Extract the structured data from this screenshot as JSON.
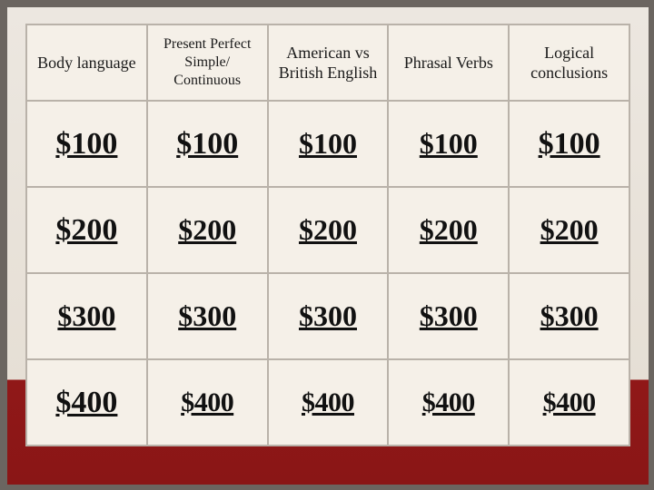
{
  "board": {
    "type": "table",
    "categories": [
      "Body language",
      "Present Perfect Simple/ Continuous",
      "American vs British English",
      "Phrasal Verbs",
      "Logical conclusions"
    ],
    "values": [
      [
        "$100",
        "$100",
        "$100",
        "$100",
        "$100"
      ],
      [
        "$200",
        "$200",
        "$200",
        "$200",
        "$200"
      ],
      [
        "$300",
        "$300",
        "$300",
        "$300",
        "$300"
      ],
      [
        "$400",
        "$400",
        "$400",
        "$400",
        "$400"
      ]
    ],
    "cell_size_class": [
      [
        "sz1",
        "sz1",
        "sz3",
        "sz3",
        "sz1"
      ],
      [
        "sz1",
        "sz3",
        "sz3",
        "sz3",
        "sz3"
      ],
      [
        "sz3",
        "sz3",
        "sz3",
        "sz3",
        "sz3"
      ],
      [
        "sz1",
        "sz2",
        "sz2",
        "sz2",
        "sz2"
      ]
    ],
    "colors": {
      "cell_bg": "#f5f0e8",
      "cell_border": "#b9b2a9",
      "page_bg_top": "#ece7e0",
      "page_bg_bottom_band": "#8a1616",
      "text": "#111111"
    },
    "header_fontsize": 18,
    "money_fontsize_base": 32,
    "columns": 5,
    "rows": 4
  }
}
